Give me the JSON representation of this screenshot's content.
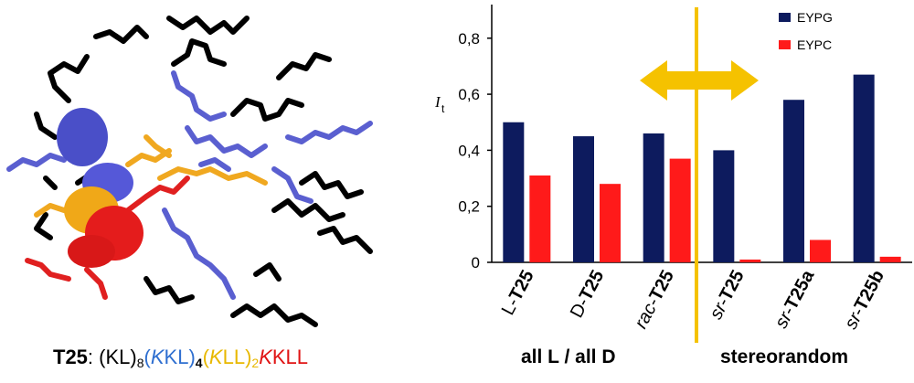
{
  "molecule_caption": {
    "name": "T25",
    "sep": ": ",
    "seg1": "(KL)",
    "seg1_sub": "8",
    "seg2": "(KKL)",
    "seg2_sub": "4",
    "seg3": "(KLL)",
    "seg3_sub": "2",
    "seg4": "KKLL",
    "colors": {
      "seg1": "#000000",
      "seg2": "#2f6fd0",
      "seg3": "#e8b800",
      "seg4": "#e01414"
    }
  },
  "chart_data": {
    "type": "bar",
    "categories": [
      {
        "prefix": "L-",
        "bold": "T25"
      },
      {
        "prefix": "D-",
        "bold": "T25"
      },
      {
        "prefix": "rac-",
        "bold": "T25",
        "italic_prefix": true
      },
      {
        "prefix": "sr-",
        "bold": "T25",
        "italic_prefix": true
      },
      {
        "prefix": "sr-",
        "bold": "T25a",
        "italic_prefix": true
      },
      {
        "prefix": "sr-",
        "bold": "T25b",
        "italic_prefix": true
      }
    ],
    "series": [
      {
        "name": "EYPG",
        "color": "#0d1b5e",
        "values": [
          0.5,
          0.45,
          0.46,
          0.4,
          0.58,
          0.67
        ]
      },
      {
        "name": "EYPC",
        "color": "#ff1a1a",
        "values": [
          0.31,
          0.28,
          0.37,
          0.01,
          0.08,
          0.02
        ]
      }
    ],
    "ylabel_main": "I",
    "ylabel_sub": "t",
    "ylim": [
      0,
      0.92
    ],
    "yticks": [
      "0",
      "0,2",
      "0,4",
      "0,6",
      "0,8"
    ],
    "ytick_values": [
      0,
      0.2,
      0.4,
      0.6,
      0.8
    ],
    "legend_position": "top-right",
    "divider_color": "#f5c200",
    "group_labels": [
      "all L / all D",
      "stereorandom"
    ]
  }
}
